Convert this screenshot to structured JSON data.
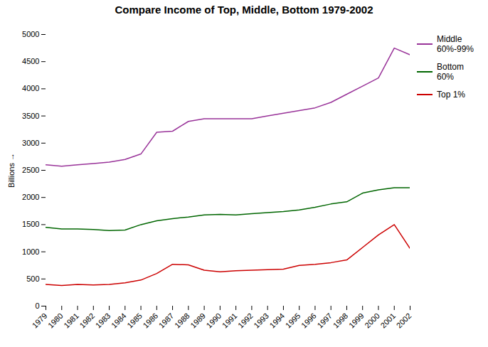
{
  "chart_data": {
    "type": "line",
    "title": "Compare Income of Top, Middle, Bottom  1979-2002",
    "ylabel": "Billions",
    "x": [
      1979,
      1980,
      1981,
      1982,
      1983,
      1984,
      1985,
      1986,
      1987,
      1988,
      1989,
      1990,
      1991,
      1992,
      1993,
      1994,
      1995,
      1996,
      1997,
      1998,
      1999,
      2000,
      2001,
      2002
    ],
    "xlim": [
      1979,
      2002
    ],
    "xticks": [
      1979,
      1980,
      1981,
      1982,
      1983,
      1984,
      1985,
      1986,
      1987,
      1988,
      1989,
      1990,
      1991,
      1992,
      1993,
      1994,
      1995,
      1996,
      1997,
      1998,
      1999,
      2000,
      2001,
      2002
    ],
    "ylim": [
      0,
      5000
    ],
    "yticks": [
      0,
      500,
      1000,
      1500,
      2000,
      2500,
      3000,
      3500,
      4000,
      4500,
      5000
    ],
    "series": [
      {
        "name": "Middle\n60%-99%",
        "color": "#993399",
        "values": [
          2600,
          2575,
          2600,
          2625,
          2650,
          2700,
          2800,
          3200,
          3220,
          3400,
          3450,
          3450,
          3450,
          3450,
          3500,
          3550,
          3600,
          3650,
          3750,
          3900,
          4050,
          4200,
          4750,
          4625
        ]
      },
      {
        "name": "Bottom\n60%",
        "color": "#006600",
        "values": [
          1450,
          1420,
          1420,
          1410,
          1390,
          1400,
          1500,
          1570,
          1610,
          1640,
          1680,
          1690,
          1680,
          1700,
          1720,
          1740,
          1770,
          1820,
          1880,
          1920,
          2080,
          2140,
          2180,
          2180
        ]
      },
      {
        "name": "Top 1%",
        "color": "#cc0000",
        "values": [
          400,
          380,
          400,
          390,
          400,
          430,
          480,
          600,
          770,
          760,
          660,
          630,
          650,
          660,
          670,
          680,
          750,
          770,
          800,
          850,
          1080,
          1310,
          1500,
          1060
        ]
      }
    ],
    "legend": "upper right",
    "grid": false
  }
}
